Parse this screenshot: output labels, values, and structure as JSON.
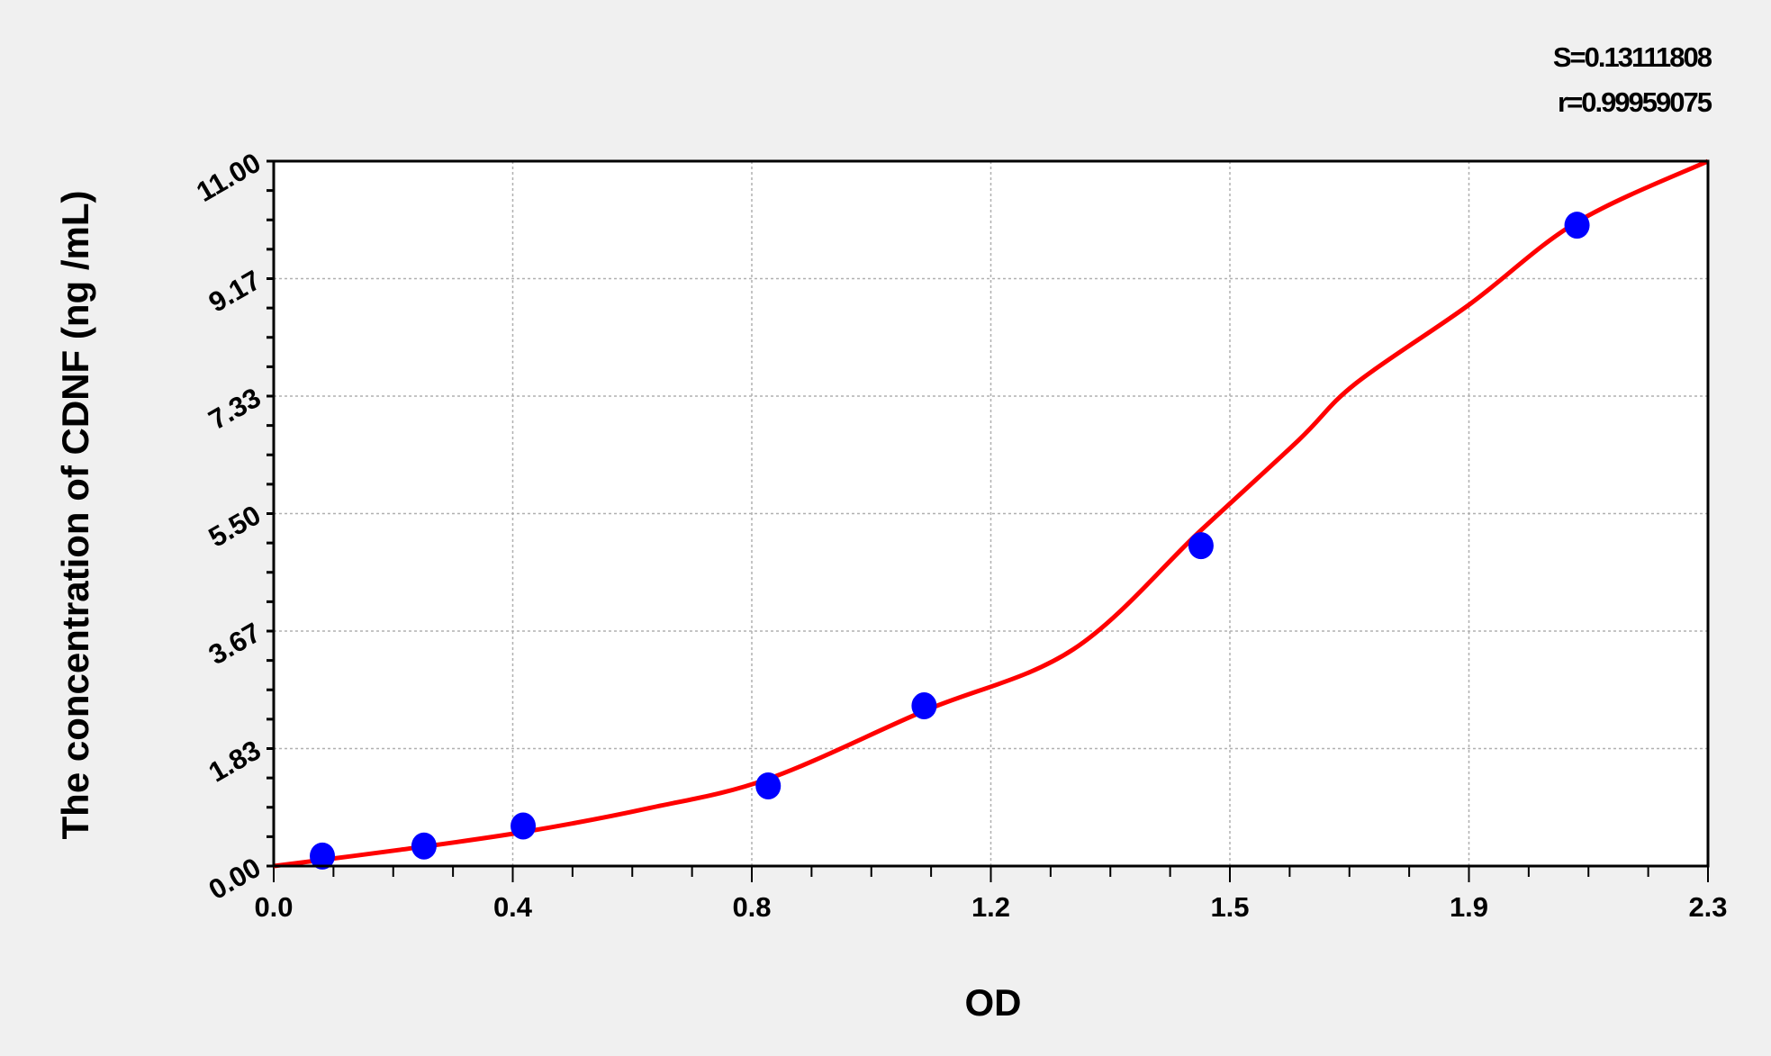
{
  "chart_data": {
    "type": "scatter",
    "xlabel": "OD",
    "ylabel": "The concentration of CDNF (ng /mL)",
    "xlim": [
      0,
      2.3
    ],
    "ylim": [
      0,
      11
    ],
    "x_ticks": [
      "0.0",
      "0.4",
      "0.8",
      "1.2",
      "1.5",
      "1.9",
      "2.3"
    ],
    "y_ticks": [
      "0.00",
      "1.83",
      "3.67",
      "5.50",
      "7.33",
      "9.17",
      "11.00"
    ],
    "grid": true,
    "stats": {
      "s": "S=0.13111808",
      "r": "r=0.99959075"
    },
    "points": [
      {
        "x": 0.078,
        "y": 0.156
      },
      {
        "x": 0.241,
        "y": 0.313
      },
      {
        "x": 0.4,
        "y": 0.625
      },
      {
        "x": 0.793,
        "y": 1.25
      },
      {
        "x": 1.043,
        "y": 2.5
      },
      {
        "x": 1.487,
        "y": 5.0
      },
      {
        "x": 2.09,
        "y": 10.0
      }
    ],
    "fit_curve": [
      [
        0,
        0
      ],
      [
        0.2,
        0.25
      ],
      [
        0.4,
        0.53
      ],
      [
        0.6,
        0.9
      ],
      [
        0.793,
        1.36
      ],
      [
        1.043,
        2.42
      ],
      [
        1.282,
        3.38
      ],
      [
        1.487,
        5.24
      ],
      [
        1.644,
        6.65
      ],
      [
        1.735,
        7.53
      ],
      [
        1.917,
        8.76
      ],
      [
        2.09,
        10.05
      ],
      [
        2.3,
        11.0
      ]
    ],
    "colors": {
      "points": "#0000ff",
      "curve": "#ff0000",
      "background": "#f0f0f0",
      "plot": "#ffffff",
      "grid": "#b0b0b0"
    }
  }
}
